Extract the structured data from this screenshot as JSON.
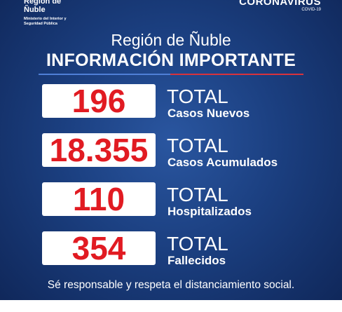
{
  "header": {
    "logo_name": "Región de Ñuble",
    "logo_subtitle": "Ministerio del Interior y Seguridad Pública",
    "campaign": "CORONAVIRUS",
    "campaign_sub": "COVID-19"
  },
  "title": "Región de Ñuble",
  "subtitle": "INFORMACIÓN IMPORTANTE",
  "stats": [
    {
      "value": "196",
      "prefix": "TOTAL",
      "label": "Casos Nuevos"
    },
    {
      "value": "18.355",
      "prefix": "TOTAL",
      "label": "Casos Acumulados"
    },
    {
      "value": "110",
      "prefix": "TOTAL",
      "label": "Hospitalizados"
    },
    {
      "value": "354",
      "prefix": "TOTAL",
      "label": "Fallecidos"
    }
  ],
  "footer": "Sé responsable y respeta el distanciamiento social."
}
